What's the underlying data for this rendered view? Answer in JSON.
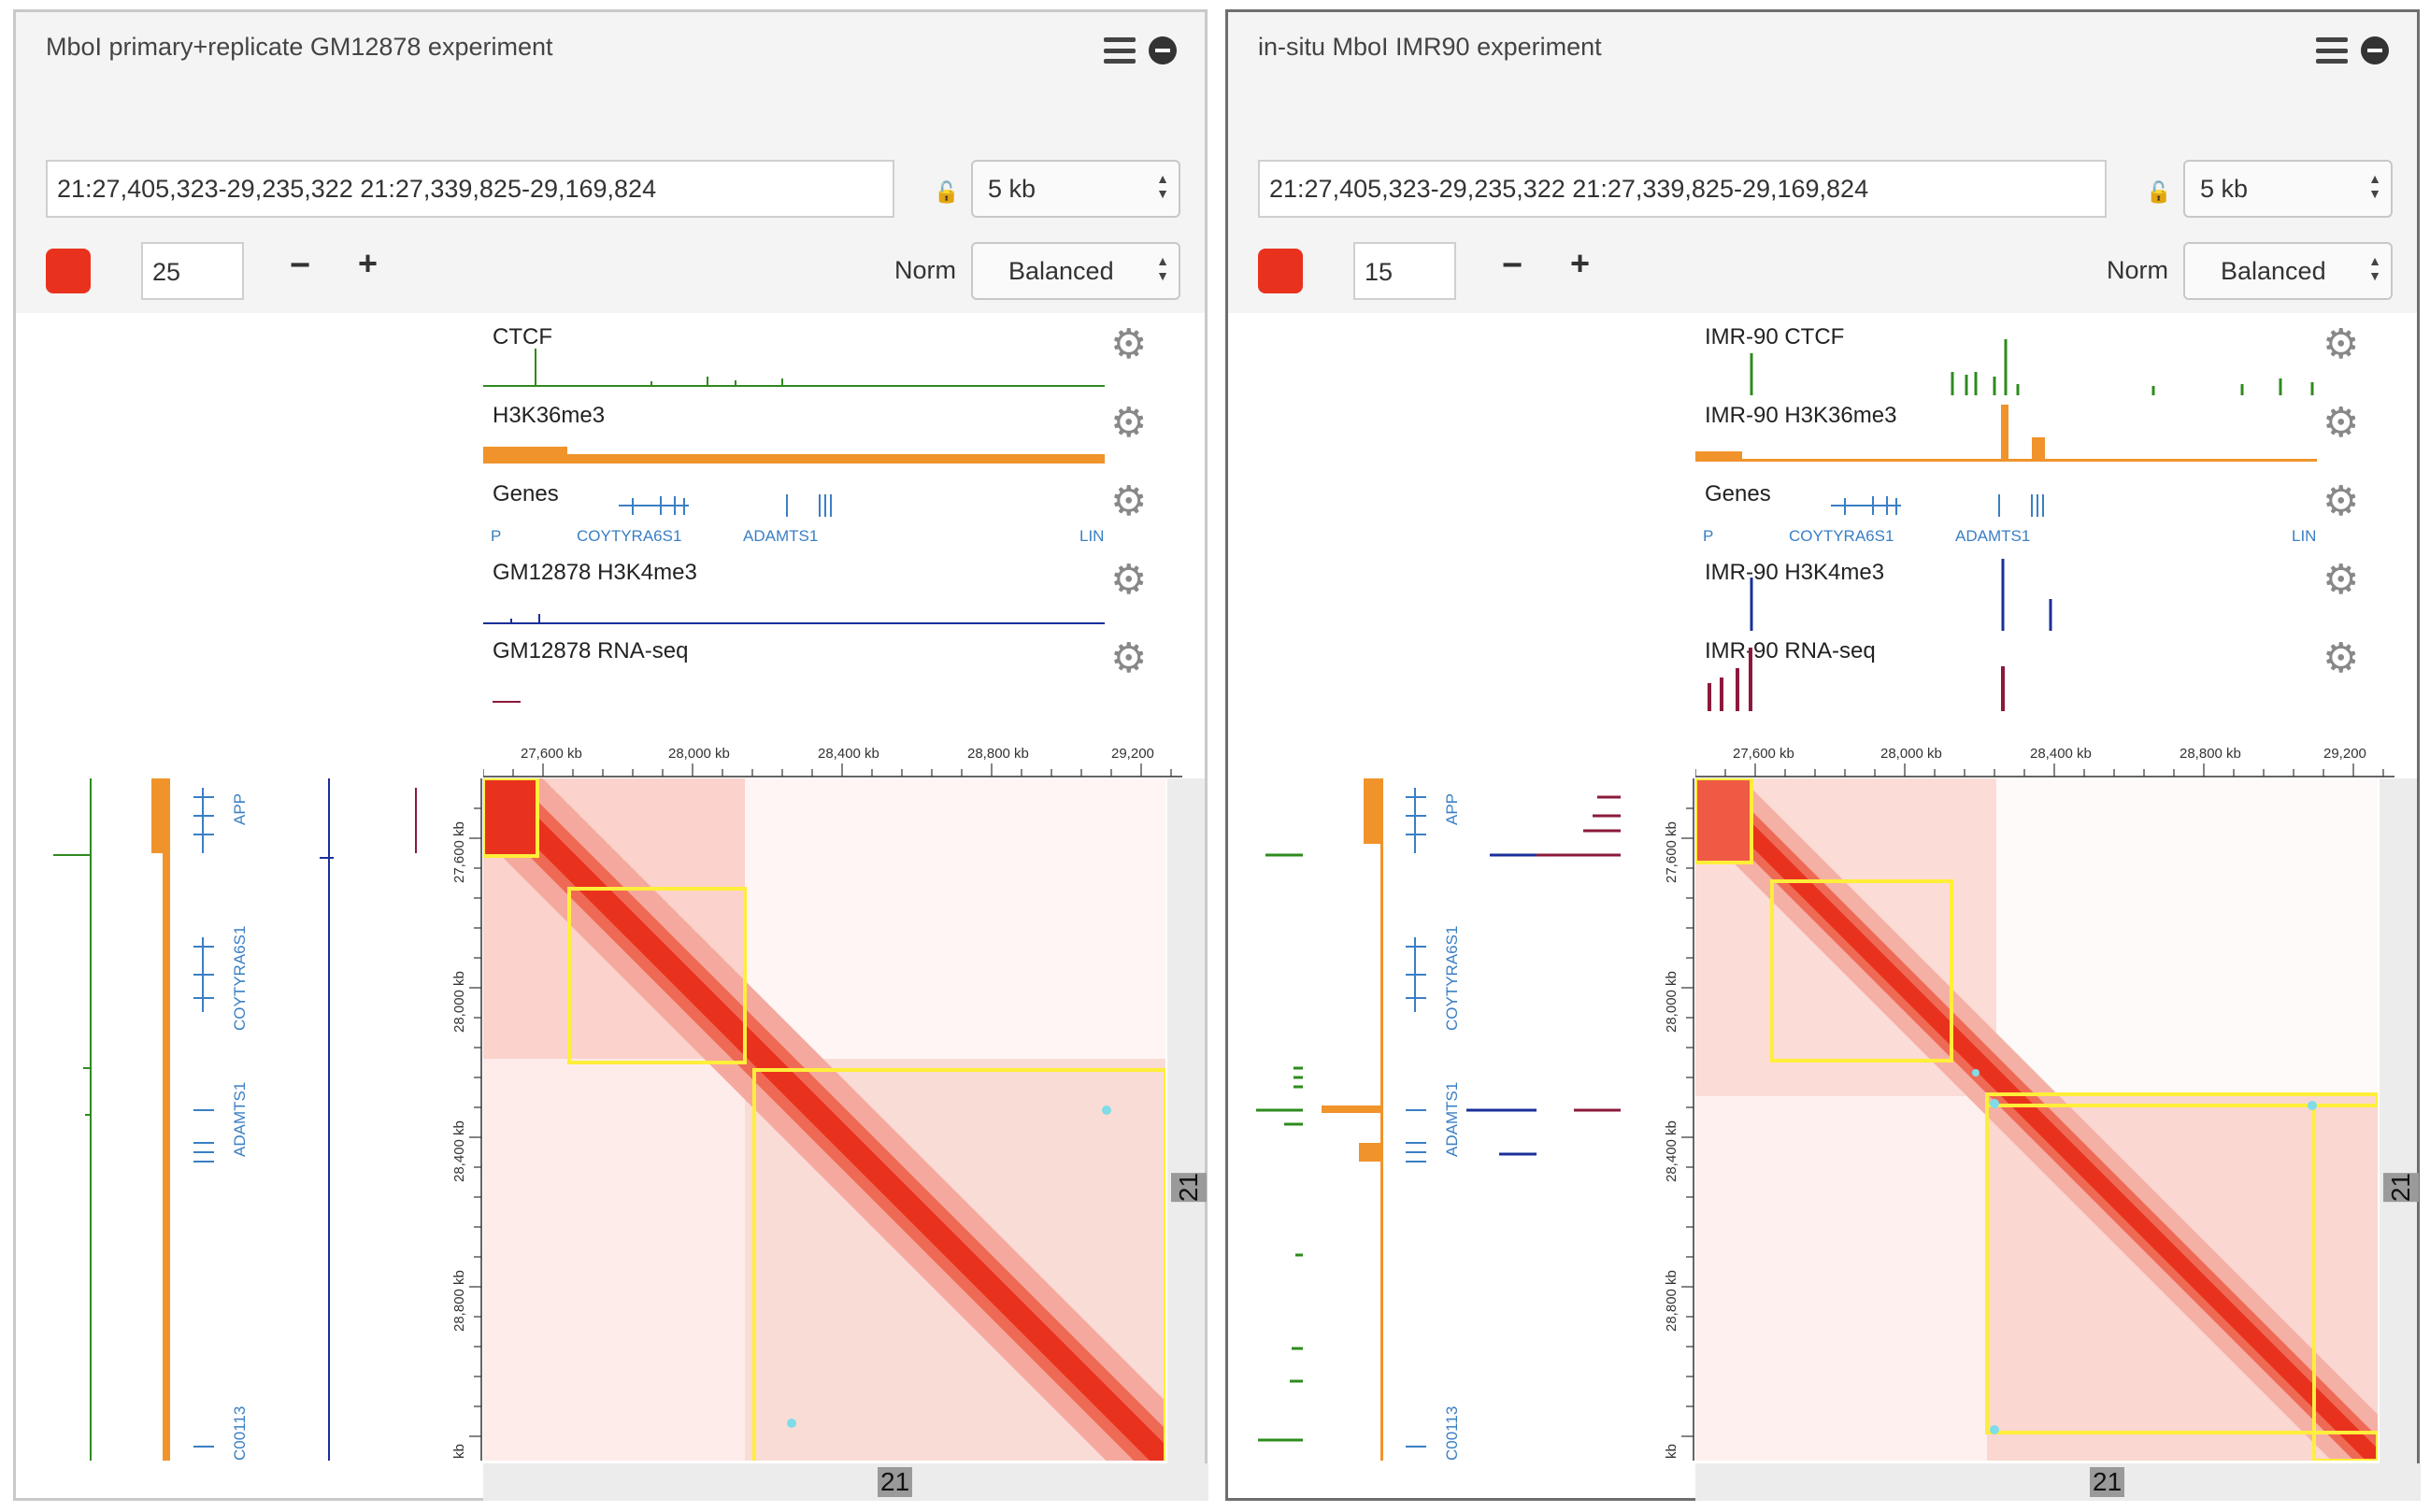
{
  "panels": [
    {
      "title": "MboI primary+replicate GM12878 experiment",
      "locus": "21:27,405,323-29,235,322 21:27,339,825-29,169,824",
      "resolution": "5 kb",
      "color_value": "25",
      "norm_label": "Norm",
      "norm_value": "Balanced",
      "tracks": [
        "CTCF",
        "H3K36me3",
        "Genes",
        "GM12878 H3K4me3",
        "GM12878 RNA-seq"
      ],
      "gene_labels": {
        "left": "P",
        "a": "COYTYRA6S1",
        "b": "ADAMTS1",
        "right": "LIN"
      },
      "side_gene_labels": [
        "APP",
        "COYTYRA6S1",
        "ADAMTS1",
        "C00113"
      ],
      "x_ticks": [
        "27,600 kb",
        "28,000 kb",
        "28,400 kb",
        "28,800 kb",
        "29,200"
      ],
      "y_ticks": [
        "27,600 kb",
        "28,000 kb",
        "28,400 kb",
        "28,800 kb",
        "kb"
      ],
      "chromosome": "21"
    },
    {
      "title": "in-situ MboI IMR90 experiment",
      "locus": "21:27,405,323-29,235,322 21:27,339,825-29,169,824",
      "resolution": "5 kb",
      "color_value": "15",
      "norm_label": "Norm",
      "norm_value": "Balanced",
      "tracks": [
        "IMR-90 CTCF",
        "IMR-90 H3K36me3",
        "Genes",
        "IMR-90 H3K4me3",
        "IMR-90 RNA-seq"
      ],
      "gene_labels": {
        "left": "P",
        "a": "COYTYRA6S1",
        "b": "ADAMTS1",
        "right": "LIN"
      },
      "side_gene_labels": [
        "APP",
        "COYTYRA6S1",
        "ADAMTS1",
        "C00113"
      ],
      "x_ticks": [
        "27,600 kb",
        "28,000 kb",
        "28,400 kb",
        "28,800 kb",
        "29,200"
      ],
      "y_ticks": [
        "27,600 kb",
        "28,000 kb",
        "28,400 kb",
        "28,800 kb",
        "kb"
      ],
      "chromosome": "21"
    }
  ],
  "colors": {
    "heatmap": "#e8321e",
    "domain_box": "#ffee3a",
    "ctcf": "#2e8b1e",
    "h3k36me3": "#f0932b",
    "genes": "#3a7fc4",
    "h3k4me3": "#1a2f9a",
    "rnaseq": "#8b1a3a"
  },
  "icons": [
    "hamburger-menu-icon",
    "minus-circle-icon",
    "lock-icon",
    "gear-icon"
  ]
}
